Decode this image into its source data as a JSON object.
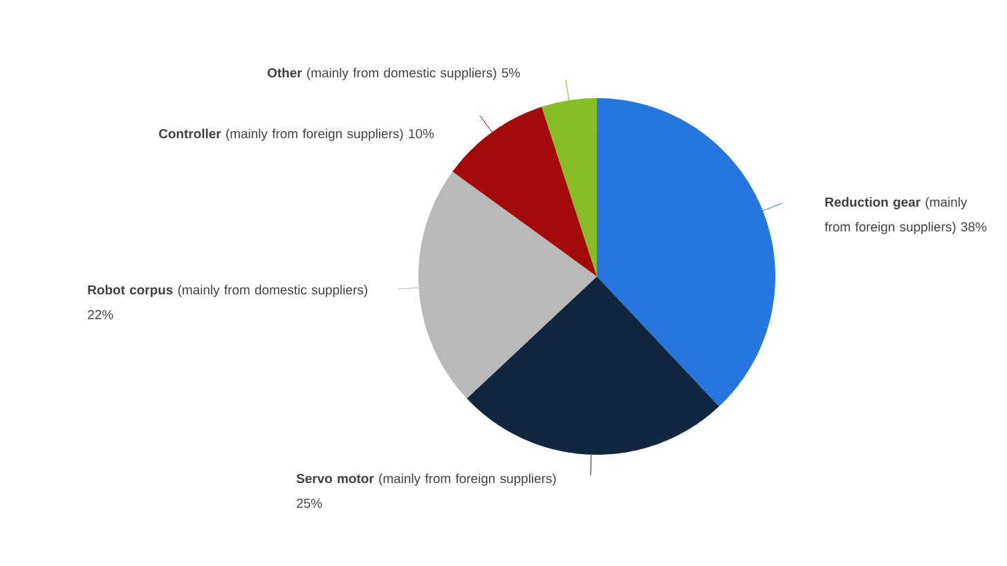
{
  "chart_data": {
    "type": "pie",
    "categories": [
      "**Reduction gear** (mainly from foreign suppliers)",
      "**Servo motor** (mainly from foreign suppliers)",
      "**Robot corpus** (mainly from domestic suppliers)",
      "**Controller** (mainly from foreign suppliers)",
      "**Other** (mainly from domestic suppliers)"
    ],
    "values": [
      38,
      25,
      22,
      10,
      5
    ],
    "colors": [
      "#2776dd",
      "#12263f",
      "#b9b9b9",
      "#a30b0b",
      "#86bc25"
    ],
    "value_labels": [
      "38%",
      "25%",
      "22%",
      "10%",
      "5%"
    ]
  }
}
